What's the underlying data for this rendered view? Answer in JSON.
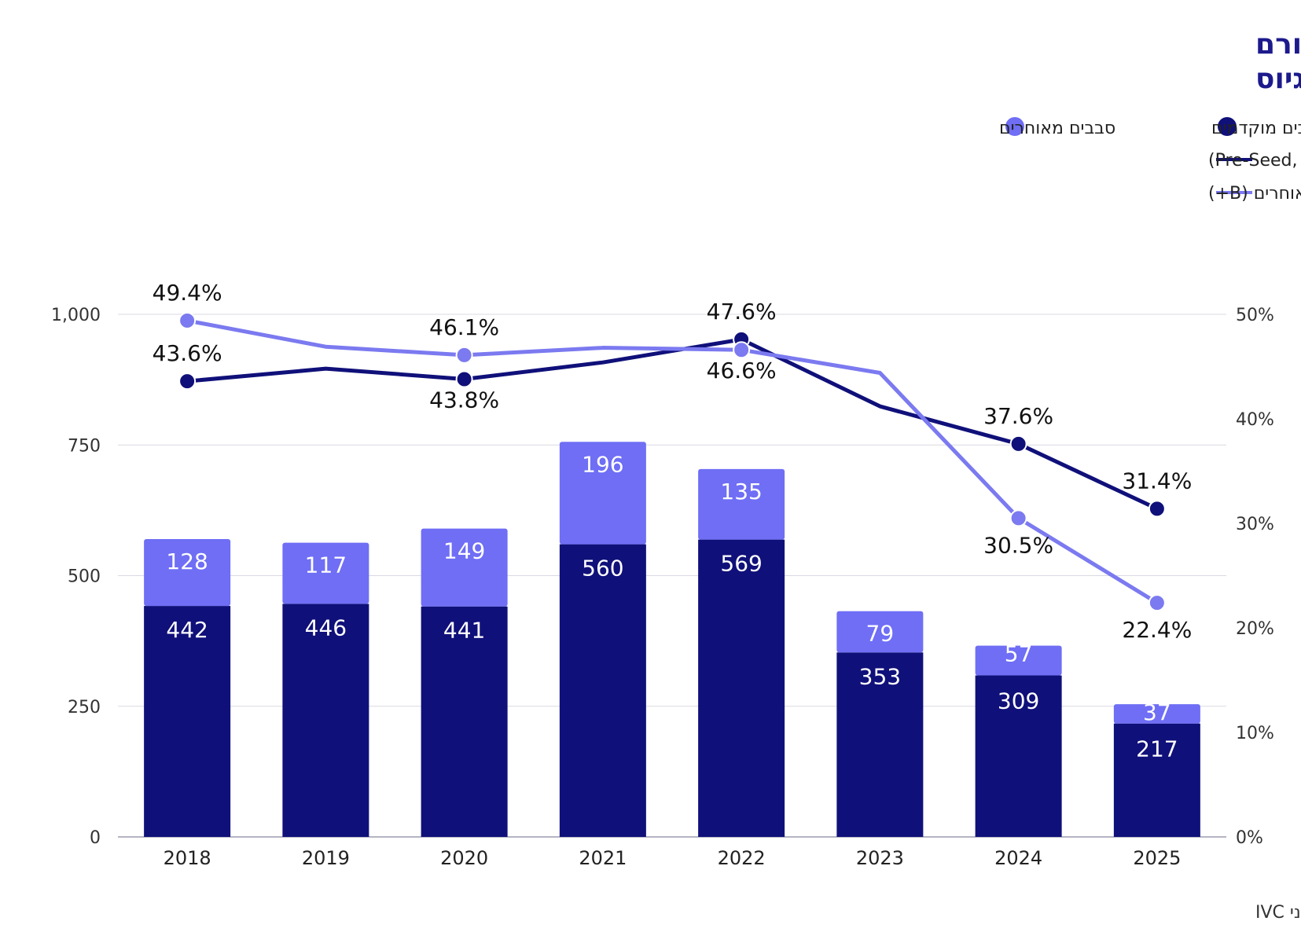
{
  "chart_data": {
    "type": "bar",
    "title": "מספר סבבי גיוס הון של חברות טכנולוגיה ישראליות בהשתתפות אנג׳לים ושיעורם מכלל הסבבים, לפי שלב גיוס",
    "title_lines": [
      "מספר סבבי גיוס הון של חברות טכנולוגיה ישראליות בהשתתפות אנג׳לים ושיעורם",
      "מכלל הסבבים, לפי שלב גיוס"
    ],
    "categories": [
      "2018",
      "2019",
      "2020",
      "2021",
      "2022",
      "2023",
      "2024",
      "2025"
    ],
    "series": [
      {
        "name": "סבבים מוקדמים",
        "kind": "bar",
        "color": "#10107a",
        "values": [
          442,
          446,
          441,
          560,
          569,
          353,
          309,
          217
        ]
      },
      {
        "name": "סבבים מאוחרים",
        "kind": "bar",
        "color": "#6f6ef5",
        "values": [
          128,
          117,
          149,
          196,
          135,
          79,
          57,
          37
        ]
      },
      {
        "name": "שיעור סבבי גיוס הון של חברות טכנולוגיה ישראליות המוקדמים בהשתתפות אנג׳לים מתוך כלל הסבבים המוקדמים (Pre-Seed, Seed, A)",
        "kind": "line",
        "color": "#10107a",
        "values": [
          43.6,
          44.8,
          43.8,
          45.4,
          47.6,
          41.2,
          37.6,
          31.4
        ],
        "labels": [
          "43.6%",
          "",
          "43.8%",
          "",
          "47.6%",
          "",
          "37.6%",
          "31.4%"
        ]
      },
      {
        "name": "שיעור סבבי גיוס הון של חברות טכנולוגיה ישראליות המאוחרים בהשתתפות אנג׳לים מתוך כלל הסבבים המאוחרים (B+)",
        "kind": "line",
        "color": "#7b7af0",
        "values": [
          49.4,
          46.9,
          46.1,
          46.8,
          46.6,
          44.4,
          30.5,
          22.4
        ],
        "labels": [
          "49.4%",
          "",
          "46.1%",
          "",
          "46.6%",
          "",
          "30.5%",
          "22.4%"
        ]
      }
    ],
    "y_left": {
      "min": 0,
      "max": 1000,
      "ticks": [
        "0",
        "250",
        "500",
        "750",
        "1,000"
      ]
    },
    "y_right": {
      "min": 0,
      "max": 50,
      "ticks": [
        "0%",
        "10%",
        "20%",
        "30%",
        "40%",
        "50%"
      ]
    },
    "grid": true,
    "legend_position": "top-right",
    "source": "מקור: עיבוד רשות החדשנות לנתוני IVC"
  },
  "colors": {
    "title": "#1c1a8c",
    "early": "#10107a",
    "late": "#6f6ef5",
    "grid": "#d9d9e3"
  }
}
